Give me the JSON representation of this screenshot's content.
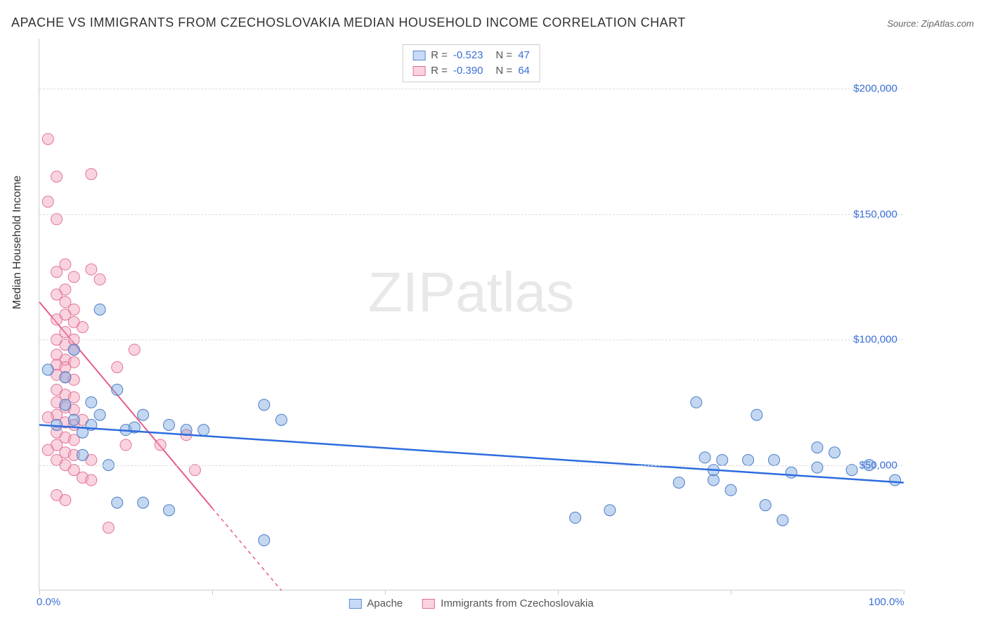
{
  "title": "APACHE VS IMMIGRANTS FROM CZECHOSLOVAKIA MEDIAN HOUSEHOLD INCOME CORRELATION CHART",
  "source_label": "Source: ZipAtlas.com",
  "ylabel": "Median Household Income",
  "watermark": {
    "bold": "ZIP",
    "light": "atlas"
  },
  "chart": {
    "type": "scatter",
    "xlim": [
      0,
      100
    ],
    "ylim": [
      0,
      220000
    ],
    "x_ticks": [
      0,
      20,
      40,
      60,
      80,
      100
    ],
    "x_tick_labels_shown": {
      "0": "0.0%",
      "100": "100.0%"
    },
    "y_ticks": [
      50000,
      100000,
      150000,
      200000
    ],
    "y_tick_labels": [
      "$50,000",
      "$100,000",
      "$150,000",
      "$200,000"
    ],
    "grid_color": "#dddddd",
    "background_color": "#ffffff",
    "axis_color": "#cccccc",
    "tick_label_color": "#3b6fd6",
    "marker_radius": 8,
    "marker_opacity": 0.45,
    "series": [
      {
        "name": "Apache",
        "color_fill": "#7aa7e0",
        "color_stroke": "#4a7dc9",
        "correlation_R": -0.523,
        "N": 47,
        "trend_line": {
          "x1": 0,
          "y1": 66000,
          "x2": 100,
          "y2": 43000,
          "stroke": "#2d6cdf",
          "width": 2.5
        },
        "points": [
          [
            1,
            88000
          ],
          [
            2,
            66000
          ],
          [
            3,
            85000
          ],
          [
            3,
            74000
          ],
          [
            4,
            68000
          ],
          [
            4,
            96000
          ],
          [
            5,
            63000
          ],
          [
            5,
            54000
          ],
          [
            6,
            75000
          ],
          [
            6,
            66000
          ],
          [
            7,
            112000
          ],
          [
            7,
            70000
          ],
          [
            8,
            50000
          ],
          [
            9,
            80000
          ],
          [
            9,
            35000
          ],
          [
            10,
            64000
          ],
          [
            11,
            65000
          ],
          [
            12,
            70000
          ],
          [
            12,
            35000
          ],
          [
            15,
            66000
          ],
          [
            15,
            32000
          ],
          [
            17,
            64000
          ],
          [
            19,
            64000
          ],
          [
            26,
            74000
          ],
          [
            26,
            20000
          ],
          [
            28,
            68000
          ],
          [
            62,
            29000
          ],
          [
            66,
            32000
          ],
          [
            74,
            43000
          ],
          [
            76,
            75000
          ],
          [
            77,
            53000
          ],
          [
            78,
            44000
          ],
          [
            78,
            48000
          ],
          [
            79,
            52000
          ],
          [
            80,
            40000
          ],
          [
            82,
            52000
          ],
          [
            83,
            70000
          ],
          [
            84,
            34000
          ],
          [
            85,
            52000
          ],
          [
            86,
            28000
          ],
          [
            87,
            47000
          ],
          [
            90,
            57000
          ],
          [
            90,
            49000
          ],
          [
            92,
            55000
          ],
          [
            94,
            48000
          ],
          [
            96,
            50000
          ],
          [
            99,
            44000
          ]
        ]
      },
      {
        "name": "Immigrants from Czechoslovakia",
        "color_fill": "#f2a0b8",
        "color_stroke": "#e27498",
        "correlation_R": -0.39,
        "N": 64,
        "trend_line": {
          "x1": 0,
          "y1": 115000,
          "x2": 28,
          "y2": 0,
          "stroke": "#e85a8a",
          "width": 2,
          "dash_after_x": 20
        },
        "points": [
          [
            1,
            180000
          ],
          [
            2,
            165000
          ],
          [
            6,
            166000
          ],
          [
            1,
            155000
          ],
          [
            2,
            148000
          ],
          [
            3,
            130000
          ],
          [
            2,
            127000
          ],
          [
            4,
            125000
          ],
          [
            6,
            128000
          ],
          [
            7,
            124000
          ],
          [
            2,
            118000
          ],
          [
            3,
            115000
          ],
          [
            4,
            112000
          ],
          [
            3,
            110000
          ],
          [
            2,
            108000
          ],
          [
            4,
            107000
          ],
          [
            3,
            103000
          ],
          [
            2,
            100000
          ],
          [
            3,
            98000
          ],
          [
            4,
            96000
          ],
          [
            2,
            94000
          ],
          [
            3,
            92000
          ],
          [
            4,
            91000
          ],
          [
            2,
            90000
          ],
          [
            3,
            89000
          ],
          [
            9,
            89000
          ],
          [
            2,
            86000
          ],
          [
            3,
            85000
          ],
          [
            4,
            84000
          ],
          [
            11,
            96000
          ],
          [
            2,
            80000
          ],
          [
            3,
            78000
          ],
          [
            4,
            77000
          ],
          [
            2,
            75000
          ],
          [
            3,
            73000
          ],
          [
            4,
            72000
          ],
          [
            2,
            70000
          ],
          [
            1,
            69000
          ],
          [
            3,
            67000
          ],
          [
            4,
            66000
          ],
          [
            2,
            63000
          ],
          [
            3,
            61000
          ],
          [
            4,
            60000
          ],
          [
            2,
            58000
          ],
          [
            1,
            56000
          ],
          [
            3,
            55000
          ],
          [
            4,
            54000
          ],
          [
            2,
            52000
          ],
          [
            3,
            50000
          ],
          [
            4,
            48000
          ],
          [
            5,
            45000
          ],
          [
            6,
            44000
          ],
          [
            2,
            38000
          ],
          [
            3,
            36000
          ],
          [
            10,
            58000
          ],
          [
            17,
            62000
          ],
          [
            8,
            25000
          ],
          [
            18,
            48000
          ],
          [
            14,
            58000
          ],
          [
            6,
            52000
          ],
          [
            5,
            68000
          ],
          [
            4,
            100000
          ],
          [
            3,
            120000
          ],
          [
            5,
            105000
          ]
        ]
      }
    ]
  },
  "legend_top_rows": [
    {
      "swatch": "blue",
      "r_label": "R =",
      "r_value": "-0.523",
      "n_label": "N =",
      "n_value": "47"
    },
    {
      "swatch": "pink",
      "r_label": "R =",
      "r_value": "-0.390",
      "n_label": "N =",
      "n_value": "64"
    }
  ],
  "legend_bottom_items": [
    {
      "swatch": "blue",
      "label": "Apache"
    },
    {
      "swatch": "pink",
      "label": "Immigrants from Czechoslovakia"
    }
  ]
}
